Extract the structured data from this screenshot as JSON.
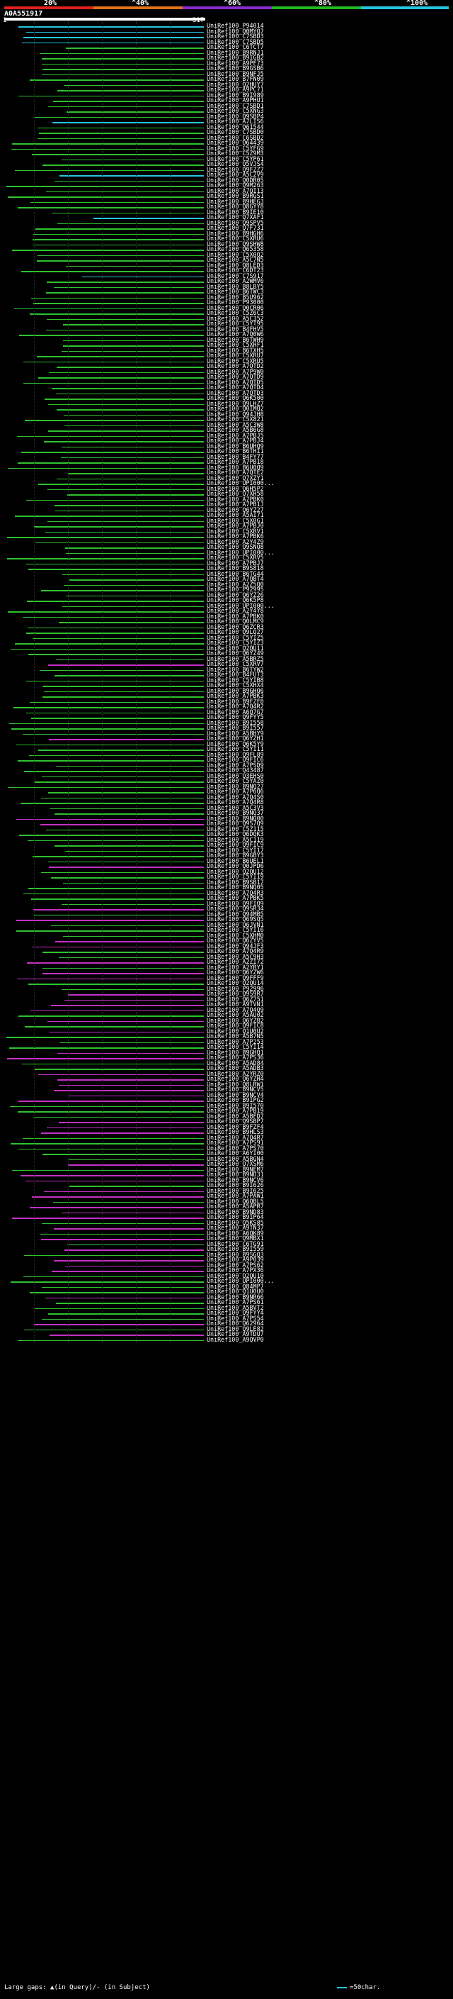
{
  "scale": {
    "labels": [
      "20%",
      "^40%",
      "^60%",
      "^80%",
      "^100%"
    ],
    "colors": [
      "#e0201a",
      "#e0721a",
      "#8a2bd1",
      "#22b822",
      "#25c7e0"
    ]
  },
  "query": {
    "name": "A0A551917",
    "start": "1",
    "end": "317"
  },
  "hit_colors": {
    "green": "#2fc22f",
    "cyan": "#25c7e0",
    "magenta": "#c431c4"
  },
  "hits": [
    {
      "label": "UniRef100_P94014",
      "color": "cyan"
    },
    {
      "label": "UniRef100_Q0MYQ7",
      "color": "cyan"
    },
    {
      "label": "UniRef100_C7SBD3",
      "color": "cyan"
    },
    {
      "label": "UniRef100_C7SBD5",
      "color": "cyan"
    },
    {
      "label": "UniRef100_C6TCT7",
      "color": "green"
    },
    {
      "label": "UniRef100_B9RNJ1",
      "color": "green"
    },
    {
      "label": "UniRef100_B9IGB2",
      "color": "green"
    },
    {
      "label": "UniRef100_A9PF73",
      "color": "green"
    },
    {
      "label": "UniRef100_B9GSB6",
      "color": "green"
    },
    {
      "label": "UniRef100_B9NFJ5",
      "color": "green"
    },
    {
      "label": "UniRef100_B7FN09",
      "color": "green"
    },
    {
      "label": "UniRef100_Q2HUY7",
      "color": "green"
    },
    {
      "label": "UniRef100_A9PC71",
      "color": "green"
    },
    {
      "label": "UniRef100_B9I989",
      "color": "green"
    },
    {
      "label": "UniRef100_A9PHU1",
      "color": "green"
    },
    {
      "label": "UniRef100_C7SBD1",
      "color": "green"
    },
    {
      "label": "UniRef100_C5XNG3",
      "color": "green"
    },
    {
      "label": "UniRef100_Q9SBP4",
      "color": "green"
    },
    {
      "label": "UniRef100_A7LIS6",
      "color": "cyan"
    },
    {
      "label": "UniRef100_Q61544",
      "color": "green"
    },
    {
      "label": "UniRef100_C7SBD0",
      "color": "green"
    },
    {
      "label": "UniRef100_C6SBD2",
      "color": "green"
    },
    {
      "label": "UniRef100_O64439",
      "color": "green"
    },
    {
      "label": "UniRef100_C5YFG9",
      "color": "green"
    },
    {
      "label": "UniRef100_C5Z9M3",
      "color": "green"
    },
    {
      "label": "UniRef100_C5YP61",
      "color": "green"
    },
    {
      "label": "UniRef100_Q5VJS4",
      "color": "green"
    },
    {
      "label": "UniRef100_Q9FZZ7",
      "color": "green"
    },
    {
      "label": "UniRef100_A5C2V9",
      "color": "cyan"
    },
    {
      "label": "UniRef100_Q0DR05",
      "color": "green"
    },
    {
      "label": "UniRef100_Q9M263",
      "color": "green"
    },
    {
      "label": "UniRef100_A7QI13",
      "color": "green"
    },
    {
      "label": "UniRef100_B9RGS1",
      "color": "green"
    },
    {
      "label": "UniRef100_B9HEG3",
      "color": "green"
    },
    {
      "label": "UniRef100_Q8GYY8",
      "color": "green"
    },
    {
      "label": "UniRef100_B9IE10",
      "color": "green"
    },
    {
      "label": "UniRef100_Q7XAF1",
      "color": "cyan"
    },
    {
      "label": "UniRef100_Q9SPV5",
      "color": "green"
    },
    {
      "label": "UniRef100_Q7F731",
      "color": "green"
    },
    {
      "label": "UniRef100_B9HGH6",
      "color": "green"
    },
    {
      "label": "UniRef100_C5XRU6",
      "color": "green"
    },
    {
      "label": "UniRef100_Q9SHW8",
      "color": "green"
    },
    {
      "label": "UniRef100_Q65358",
      "color": "green"
    },
    {
      "label": "UniRef100_C5X0Q2",
      "color": "green"
    },
    {
      "label": "UniRef100_A5C7N5",
      "color": "green"
    },
    {
      "label": "UniRef100_Q8LED3",
      "color": "green"
    },
    {
      "label": "UniRef100_C6DT23",
      "color": "green"
    },
    {
      "label": "UniRef100_C7S917",
      "color": "cyan"
    },
    {
      "label": "UniRef100_A2WMV6",
      "color": "green"
    },
    {
      "label": "UniRef100_B8LBY5",
      "color": "green"
    },
    {
      "label": "UniRef100_B6TWC3",
      "color": "green"
    },
    {
      "label": "UniRef100_B5U962",
      "color": "green"
    },
    {
      "label": "UniRef100_P93000",
      "color": "green"
    },
    {
      "label": "UniRef100_Q0CR06",
      "color": "green"
    },
    {
      "label": "UniRef100_C5Z6C3",
      "color": "green"
    },
    {
      "label": "UniRef100_A5C352",
      "color": "green"
    },
    {
      "label": "UniRef100_C5YT95",
      "color": "green"
    },
    {
      "label": "UniRef100_B4FHV5",
      "color": "green"
    },
    {
      "label": "UniRef100_A7Q0W6",
      "color": "green"
    },
    {
      "label": "UniRef100_B6TWH9",
      "color": "green"
    },
    {
      "label": "UniRef100_C5XHF1",
      "color": "green"
    },
    {
      "label": "UniRef100_B6TXH5",
      "color": "green"
    },
    {
      "label": "UniRef100_C5XRU7",
      "color": "green"
    },
    {
      "label": "UniRef100_C5XRU5",
      "color": "green"
    },
    {
      "label": "UniRef100_A7QTD2",
      "color": "green"
    },
    {
      "label": "UniRef100_A7P9W0",
      "color": "green"
    },
    {
      "label": "UniRef100_A7QTD9",
      "color": "green"
    },
    {
      "label": "UniRef100_A7QTD5",
      "color": "green"
    },
    {
      "label": "UniRef100_A7QTD4",
      "color": "green"
    },
    {
      "label": "UniRef100_A7QTD3",
      "color": "green"
    },
    {
      "label": "UniRef100_Q6K500",
      "color": "green"
    },
    {
      "label": "UniRef100_Q9LHZ7",
      "color": "green"
    },
    {
      "label": "UniRef100_Q0IMQ2",
      "color": "green"
    },
    {
      "label": "UniRef100_Q94JH8",
      "color": "green"
    },
    {
      "label": "UniRef100_C5X821",
      "color": "green"
    },
    {
      "label": "UniRef100_A5C3W8",
      "color": "green"
    },
    {
      "label": "UniRef100_A5B6G8",
      "color": "green"
    },
    {
      "label": "UniRef100_A7PBJ5",
      "color": "green"
    },
    {
      "label": "UniRef100_A7PBJ4",
      "color": "green"
    },
    {
      "label": "UniRef100_B6UHQ9",
      "color": "green"
    },
    {
      "label": "UniRef100_B6THI1",
      "color": "green"
    },
    {
      "label": "UniRef100_B4FY77",
      "color": "green"
    },
    {
      "label": "UniRef100_A7PB18",
      "color": "green"
    },
    {
      "label": "UniRef100_B6U0Q9",
      "color": "green"
    },
    {
      "label": "UniRef100_A7QTE2",
      "color": "green"
    },
    {
      "label": "UniRef100_Q7XZY1",
      "color": "green"
    },
    {
      "label": "UniRef100_UPI000...",
      "color": "green"
    },
    {
      "label": "UniRef100_Q6H5P2",
      "color": "green"
    },
    {
      "label": "UniRef100_Q7XH58",
      "color": "green"
    },
    {
      "label": "UniRef100_A7PBK0",
      "color": "green"
    },
    {
      "label": "UniRef100_A7PB1J",
      "color": "green"
    },
    {
      "label": "UniRef100_Q6YZ27",
      "color": "green"
    },
    {
      "label": "UniRef100_A5AI71",
      "color": "green"
    },
    {
      "label": "UniRef100_C5X0G1",
      "color": "green"
    },
    {
      "label": "UniRef100_A7PBJ0",
      "color": "green"
    },
    {
      "label": "UniRef100_C5XRV1",
      "color": "green"
    },
    {
      "label": "UniRef100_A7PBK6",
      "color": "green"
    },
    {
      "label": "UniRef100_A2Y4Z9",
      "color": "green"
    },
    {
      "label": "UniRef100_Q9SNQ8",
      "color": "green"
    },
    {
      "label": "UniRef100_UPI000...",
      "color": "green"
    },
    {
      "label": "UniRef100_C5XRV5",
      "color": "green"
    },
    {
      "label": "UniRef100_A7PBJ7",
      "color": "green"
    },
    {
      "label": "UniRef100_B9S818",
      "color": "green"
    },
    {
      "label": "UniRef100_B6TG44",
      "color": "green"
    },
    {
      "label": "UniRef100_A7QBT4",
      "color": "green"
    },
    {
      "label": "UniRef100_A2Z5Q0",
      "color": "green"
    },
    {
      "label": "UniRef100_P92995",
      "color": "green"
    },
    {
      "label": "UniRef100_Q6YZ26",
      "color": "green"
    },
    {
      "label": "UniRef100_Q6K5P8",
      "color": "green"
    },
    {
      "label": "UniRef100_UPI000...",
      "color": "green"
    },
    {
      "label": "UniRef100_A2Y4Y8",
      "color": "green"
    },
    {
      "label": "UniRef100_A7PBK0",
      "color": "green"
    },
    {
      "label": "UniRef100_Q0LMC9",
      "color": "green"
    },
    {
      "label": "UniRef100_Q6ZCR3",
      "color": "green"
    },
    {
      "label": "UniRef100_Q9LQ27",
      "color": "green"
    },
    {
      "label": "UniRef100_C5YIZ5",
      "color": "green"
    },
    {
      "label": "UniRef100_C5YIZ3",
      "color": "green"
    },
    {
      "label": "UniRef100_Q2QU11",
      "color": "green"
    },
    {
      "label": "UniRef100_Q6YZ49",
      "color": "green"
    },
    {
      "label": "UniRef100_A5BRZ5",
      "color": "green"
    },
    {
      "label": "UniRef100_C5XRV7",
      "color": "magenta"
    },
    {
      "label": "UniRef100_B6TYW2",
      "color": "green"
    },
    {
      "label": "UniRef100_B4FUT3",
      "color": "green"
    },
    {
      "label": "UniRef100_C5YIB8",
      "color": "green"
    },
    {
      "label": "UniRef100_C5XHX4",
      "color": "green"
    },
    {
      "label": "UniRef100_B9GHQ6",
      "color": "green"
    },
    {
      "label": "UniRef100_A7PBK3",
      "color": "green"
    },
    {
      "label": "UniRef100_B9FZF8",
      "color": "green"
    },
    {
      "label": "UniRef100_A7Q4R2",
      "color": "green"
    },
    {
      "label": "UniRef100_A6Q7G7",
      "color": "green"
    },
    {
      "label": "UniRef100_Q9FYY5",
      "color": "green"
    },
    {
      "label": "UniRef100_B9I558",
      "color": "green"
    },
    {
      "label": "UniRef100_B9I557",
      "color": "green"
    },
    {
      "label": "UniRef100_A5BHY9",
      "color": "green"
    },
    {
      "label": "UniRef100_Q6YZH1",
      "color": "magenta"
    },
    {
      "label": "UniRef100_Q6K5Y9",
      "color": "green"
    },
    {
      "label": "UniRef100_C5YI11",
      "color": "green"
    },
    {
      "label": "UniRef100_Q9FL89",
      "color": "green"
    },
    {
      "label": "UniRef100_Q9FIC6",
      "color": "green"
    },
    {
      "label": "UniRef100_A7PSD9",
      "color": "green"
    },
    {
      "label": "UniRef100_Q43487",
      "color": "green"
    },
    {
      "label": "UniRef100_Q3EHS0",
      "color": "green"
    },
    {
      "label": "UniRef100_C5YAZ0",
      "color": "green"
    },
    {
      "label": "UniRef100_B9NQ27",
      "color": "green"
    },
    {
      "label": "UniRef100_A7P6Q6",
      "color": "green"
    },
    {
      "label": "UniRef100_A7Q4S0",
      "color": "green"
    },
    {
      "label": "UniRef100_A7Q4R8",
      "color": "green"
    },
    {
      "label": "UniRef100_A5C3V3",
      "color": "green"
    },
    {
      "label": "UniRef100_B9NQ37",
      "color": "green"
    },
    {
      "label": "UniRef100_B9NQ00",
      "color": "magenta"
    },
    {
      "label": "UniRef100_Q9S7Q9",
      "color": "magenta"
    },
    {
      "label": "UniRef100_C5Z115",
      "color": "green"
    },
    {
      "label": "UniRef100_Q6DQK3",
      "color": "green"
    },
    {
      "label": "UniRef100_A5C119",
      "color": "green"
    },
    {
      "label": "UniRef100_Q9FIC9",
      "color": "green"
    },
    {
      "label": "UniRef100_C5YI17",
      "color": "green"
    },
    {
      "label": "UniRef100_B9GBY3",
      "color": "green"
    },
    {
      "label": "UniRef100_B6UEL1",
      "color": "green"
    },
    {
      "label": "UniRef100_Q0JPD6",
      "color": "magenta"
    },
    {
      "label": "UniRef100_Q2QU12",
      "color": "green"
    },
    {
      "label": "UniRef100_C5YI19",
      "color": "green"
    },
    {
      "label": "UniRef100_B9SB17",
      "color": "green"
    },
    {
      "label": "UniRef100_B9NQ05",
      "color": "green"
    },
    {
      "label": "UniRef100_A7Q4R3",
      "color": "green"
    },
    {
      "label": "UniRef100_A7PBK5",
      "color": "green"
    },
    {
      "label": "UniRef100_Q9FIO9",
      "color": "green"
    },
    {
      "label": "UniRef100_Q9SR34",
      "color": "magenta"
    },
    {
      "label": "UniRef100_Q94MB5",
      "color": "green"
    },
    {
      "label": "UniRef100_Q69SQ5",
      "color": "magenta"
    },
    {
      "label": "UniRef100_Q6JVN1",
      "color": "green"
    },
    {
      "label": "UniRef100_C5YI16",
      "color": "green"
    },
    {
      "label": "UniRef100_C5XHM0",
      "color": "green"
    },
    {
      "label": "UniRef100_Q6ZYV5",
      "color": "magenta"
    },
    {
      "label": "UniRef100_Q94JF3",
      "color": "magenta"
    },
    {
      "label": "UniRef100_A7Q4R9",
      "color": "green"
    },
    {
      "label": "UniRef100_A5C9H3",
      "color": "green"
    },
    {
      "label": "UniRef100_A2ZI72",
      "color": "magenta"
    },
    {
      "label": "UniRef100_A2YRY1",
      "color": "green"
    },
    {
      "label": "UniRef100_Q6YZW6",
      "color": "magenta"
    },
    {
      "label": "UniRef100_Q9FFF9",
      "color": "magenta"
    },
    {
      "label": "UniRef100_Q2QU14",
      "color": "green"
    },
    {
      "label": "UniRef100_P92996",
      "color": "green"
    },
    {
      "label": "UniRef100_Q9S9R7",
      "color": "magenta"
    },
    {
      "label": "UniRef100_Q6Z751",
      "color": "magenta"
    },
    {
      "label": "UniRef100_A9TVN1",
      "color": "magenta"
    },
    {
      "label": "UniRef100_A7Q4Q9",
      "color": "magenta"
    },
    {
      "label": "UniRef100_A5AU02",
      "color": "green"
    },
    {
      "label": "UniRef100_Q6YZB2",
      "color": "magenta"
    },
    {
      "label": "UniRef100_Q9FIC8",
      "color": "green"
    },
    {
      "label": "UniRef100_Q1U0U2",
      "color": "magenta"
    },
    {
      "label": "UniRef100_A5B7N5",
      "color": "green"
    },
    {
      "label": "UniRef100_A7P253",
      "color": "green"
    },
    {
      "label": "UniRef100_C5YI14",
      "color": "green"
    },
    {
      "label": "UniRef100_B9GHQ1",
      "color": "magenta"
    },
    {
      "label": "UniRef100_A7PS36",
      "color": "magenta"
    },
    {
      "label": "UniRef100_A5AD84",
      "color": "green"
    },
    {
      "label": "UniRef100_A5ADB3",
      "color": "green"
    },
    {
      "label": "UniRef100_A2YRZ0",
      "color": "magenta"
    },
    {
      "label": "UniRef100_Q6YZH4",
      "color": "magenta"
    },
    {
      "label": "UniRef100_Q8LRW1",
      "color": "magenta"
    },
    {
      "label": "UniRef100_B9NCV5",
      "color": "magenta"
    },
    {
      "label": "UniRef100_B9NCV4",
      "color": "magenta"
    },
    {
      "label": "UniRef100_B9IPG2",
      "color": "magenta"
    },
    {
      "label": "UniRef100_B9I570",
      "color": "green"
    },
    {
      "label": "UniRef100_A7PB19",
      "color": "green"
    },
    {
      "label": "UniRef100_A5BFD7",
      "color": "green"
    },
    {
      "label": "UniRef100_Q9SBP7",
      "color": "magenta"
    },
    {
      "label": "UniRef100_B9FZF4",
      "color": "magenta"
    },
    {
      "label": "UniRef100_B9HLS3",
      "color": "magenta"
    },
    {
      "label": "UniRef100_A7Q4R7",
      "color": "green"
    },
    {
      "label": "UniRef100_A7PS91",
      "color": "green"
    },
    {
      "label": "UniRef100_A7PS70",
      "color": "green"
    },
    {
      "label": "UniRef100_A6YI00",
      "color": "green"
    },
    {
      "label": "UniRef100_A5BGN4",
      "color": "green"
    },
    {
      "label": "UniRef100_Q7XSM6",
      "color": "magenta"
    },
    {
      "label": "UniRef100_B9NEM7",
      "color": "green"
    },
    {
      "label": "UniRef100_B9ND31",
      "color": "magenta"
    },
    {
      "label": "UniRef100_B9NCV6",
      "color": "magenta"
    },
    {
      "label": "UniRef100_B9I626",
      "color": "green"
    },
    {
      "label": "UniRef100_B9I625",
      "color": "magenta"
    },
    {
      "label": "UniRef100_A7PAW1",
      "color": "magenta"
    },
    {
      "label": "UniRef100_Q6QBL5",
      "color": "green"
    },
    {
      "label": "UniRef100_A5APR7",
      "color": "magenta"
    },
    {
      "label": "UniRef100_B9ND83",
      "color": "magenta"
    },
    {
      "label": "UniRef100_B9IP64",
      "color": "magenta"
    },
    {
      "label": "UniRef100_Q5KS85",
      "color": "green"
    },
    {
      "label": "UniRef100_A9TN37",
      "color": "magenta"
    },
    {
      "label": "UniRef100_A6QK89",
      "color": "green"
    },
    {
      "label": "UniRef100_Q9MBX1",
      "color": "magenta"
    },
    {
      "label": "UniRef100_C6TG91",
      "color": "green"
    },
    {
      "label": "UniRef100_B9I559",
      "color": "magenta"
    },
    {
      "label": "UniRef100_B9SGQ3",
      "color": "green"
    },
    {
      "label": "UniRef100_A9P039",
      "color": "magenta"
    },
    {
      "label": "UniRef100_A7PS62",
      "color": "magenta"
    },
    {
      "label": "UniRef100_A7PX36",
      "color": "magenta"
    },
    {
      "label": "UniRef100_Q2QU10",
      "color": "green"
    },
    {
      "label": "UniRef100_UPI000...",
      "color": "green"
    },
    {
      "label": "UniRef100_Q84MP7",
      "color": "green"
    },
    {
      "label": "UniRef100_Q1U0U0",
      "color": "green"
    },
    {
      "label": "UniRef100_B9NR66",
      "color": "magenta"
    },
    {
      "label": "UniRef100_A7PS61",
      "color": "green"
    },
    {
      "label": "UniRef100_A5BVT2",
      "color": "green"
    },
    {
      "label": "UniRef100_Q9FYY4",
      "color": "green"
    },
    {
      "label": "UniRef100_A7PS54",
      "color": "green"
    },
    {
      "label": "UniRef100_Q62964",
      "color": "magenta"
    },
    {
      "label": "UniRef100_Q9LE82",
      "color": "green"
    },
    {
      "label": "UniRef100_A9TDU7",
      "color": "magenta"
    },
    {
      "label": "UniRef100_A9QVP0",
      "color": "green"
    }
  ],
  "footer": {
    "gaps_text": "Large gaps: ▲(in Query)/- (in Subject)",
    "legend_text": "=50char."
  }
}
